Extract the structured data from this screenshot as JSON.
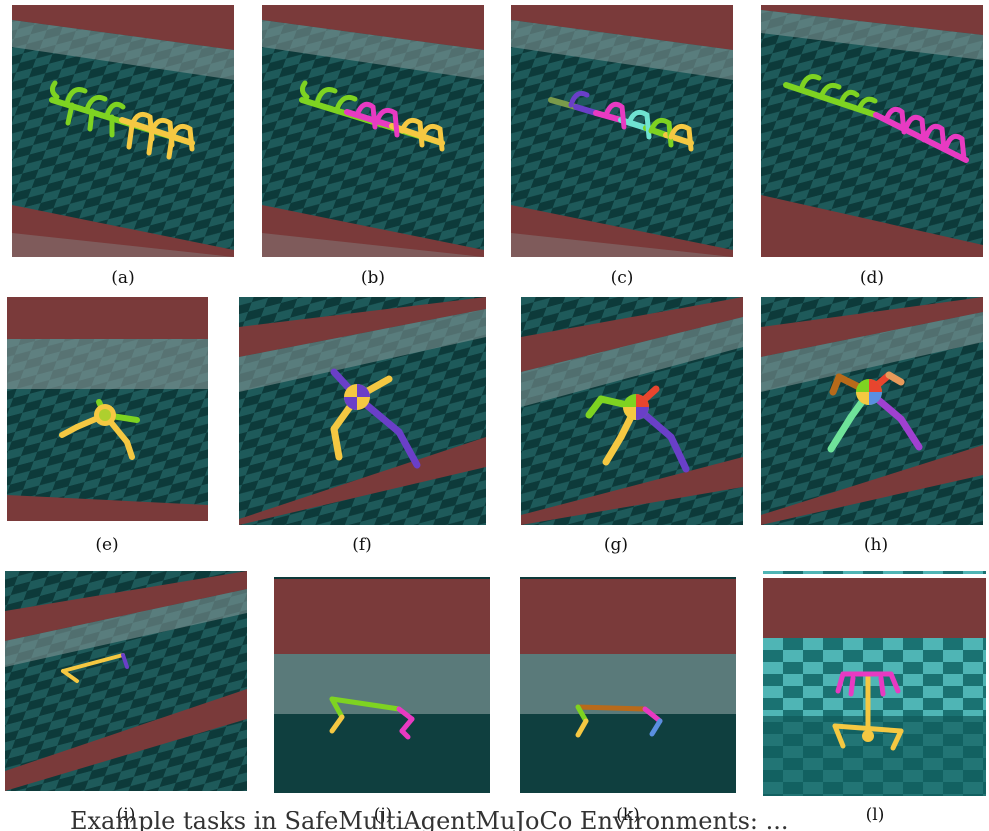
{
  "figure": {
    "captions": [
      "(a)",
      "(b)",
      "(c)",
      "(d)",
      "(e)",
      "(f)",
      "(g)",
      "(h)",
      "(i)",
      "(j)",
      "(k)",
      "(l)"
    ],
    "bottom_text": "Example tasks in SafeMultiAgentMuJoCo Environments: ...",
    "colors": {
      "floor_dark": "#0d3a3a",
      "floor_light": "#1e5a5a",
      "wall": "#7a3a3a",
      "green": "#7ed321",
      "yellow": "#f5c842",
      "magenta": "#e83ac2",
      "purple": "#6a3fc8",
      "cyan": "#6fe3d1",
      "orange": "#b86a1a",
      "red": "#e8452e",
      "blue": "#5a8fe0"
    },
    "panel_types": [
      "centipede",
      "centipede",
      "centipede",
      "centipede",
      "ant",
      "ant",
      "ant",
      "ant",
      "swimmer",
      "halfcheetah",
      "halfcheetah",
      "humanoid"
    ]
  }
}
